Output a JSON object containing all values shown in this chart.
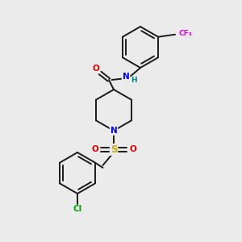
{
  "background_color": "#ebebeb",
  "bond_color": "#1a1a1a",
  "atom_colors": {
    "N": "#0000ee",
    "O": "#dd0000",
    "S": "#ccaa00",
    "F": "#dd00dd",
    "Cl": "#00aa00",
    "C": "#1a1a1a",
    "H": "#008888"
  },
  "figsize": [
    3.0,
    3.0
  ],
  "dpi": 100
}
